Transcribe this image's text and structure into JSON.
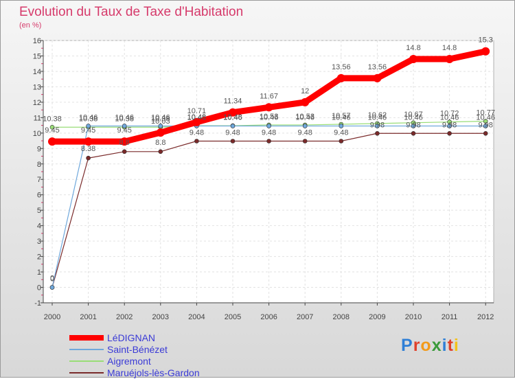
{
  "title": "Evolution du Taux de Taxe d'Habitation",
  "unit_label": "(en %)",
  "logo": {
    "text": "Proxiti",
    "colors": [
      "#2f7fd6",
      "#e0402a",
      "#f29a1a",
      "#3a9a3a",
      "#2f7fd6",
      "#e0402a",
      "#f2c21a"
    ]
  },
  "chart_data": {
    "type": "line",
    "title": "Evolution du Taux de Taxe d'Habitation",
    "ylabel": "(en %)",
    "x": [
      2000,
      2001,
      2002,
      2003,
      2004,
      2005,
      2006,
      2007,
      2008,
      2009,
      2010,
      2011,
      2012
    ],
    "ylim": [
      -1,
      16
    ],
    "yticks": [
      -1,
      0,
      1,
      2,
      3,
      4,
      5,
      6,
      7,
      8,
      9,
      10,
      11,
      12,
      13,
      14,
      15,
      16
    ],
    "grid": true,
    "series": [
      {
        "name": "LéDIGNAN",
        "color": "#ff0000",
        "values": [
          9.45,
          9.45,
          9.45,
          10.03,
          10.71,
          11.34,
          11.67,
          12,
          13.56,
          13.56,
          14.8,
          14.8,
          15.3
        ],
        "labels": [
          "9.45",
          "9.45",
          "9.45",
          "10.03",
          "10.71",
          "11.34",
          "11.67",
          "12",
          "13.56",
          "13.56",
          "14.8",
          "14.8",
          "15.3"
        ]
      },
      {
        "name": "Saint-Bénézet",
        "color": "#6fa8dc",
        "values": [
          0,
          10.46,
          10.46,
          10.46,
          10.46,
          10.46,
          10.46,
          10.46,
          10.46,
          10.46,
          10.46,
          10.46,
          10.46
        ],
        "labels": [
          "0",
          "10.46",
          "10.46",
          "10.46",
          "10.46",
          "10.46",
          "10.46",
          "10.46",
          "10.46",
          "10.46",
          "10.46",
          "10.46",
          "10.46"
        ]
      },
      {
        "name": "Aigremont",
        "color": "#99dd77",
        "values": [
          10.38,
          10.38,
          10.38,
          10.38,
          10.48,
          10.48,
          10.53,
          10.53,
          10.57,
          10.62,
          10.67,
          10.72,
          10.77
        ],
        "labels": [
          "10.38",
          "10.38",
          "10.38",
          "10.38",
          "10.48",
          "10.48",
          "10.53",
          "10.53",
          "10.57",
          "10.62",
          "10.67",
          "10.72",
          "10.77"
        ]
      },
      {
        "name": "Maruéjols-lès-Gardon",
        "color": "#7a2a2a",
        "values": [
          0,
          8.38,
          8.8,
          8.8,
          9.48,
          9.48,
          9.48,
          9.48,
          9.48,
          9.98,
          9.98,
          9.98,
          9.98
        ],
        "labels": [
          "0",
          "8.38",
          "8.8",
          "8.8",
          "9.48",
          "9.48",
          "9.48",
          "9.48",
          "9.48",
          "9.98",
          "9.98",
          "9.98",
          "9.98"
        ]
      }
    ]
  }
}
